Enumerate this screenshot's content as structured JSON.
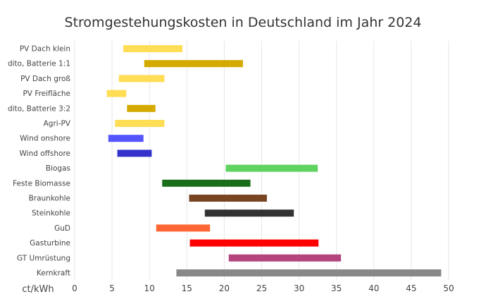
{
  "chart_data": {
    "type": "bar",
    "orientation": "horizontal-range",
    "title": "Stromgestehungskosten in Deutschland im Jahr 2024",
    "xlabel": "ct/kWh",
    "xlim": [
      0,
      50
    ],
    "xticks": [
      0,
      5,
      10,
      15,
      20,
      25,
      30,
      35,
      40,
      45,
      50
    ],
    "grid": true,
    "series": [
      {
        "name": "PV Dach klein",
        "low": 6.5,
        "high": 14.4,
        "color": "#ffdd55"
      },
      {
        "name": "dito, Batterie 1:1",
        "low": 9.3,
        "high": 22.5,
        "color": "#d4aa00"
      },
      {
        "name": "PV Dach groß",
        "low": 5.9,
        "high": 12.0,
        "color": "#ffdd55"
      },
      {
        "name": "PV Freifläche",
        "low": 4.3,
        "high": 6.9,
        "color": "#ffdd55"
      },
      {
        "name": "dito, Batterie 3:2",
        "low": 7.0,
        "high": 10.8,
        "color": "#d4aa00"
      },
      {
        "name": "Agri-PV",
        "low": 5.4,
        "high": 12.0,
        "color": "#ffdd55"
      },
      {
        "name": "Wind onshore",
        "low": 4.5,
        "high": 9.2,
        "color": "#5555ff"
      },
      {
        "name": "Wind offshore",
        "low": 5.7,
        "high": 10.3,
        "color": "#3333cc"
      },
      {
        "name": "Biogas",
        "low": 20.2,
        "high": 32.5,
        "color": "#5fd35f"
      },
      {
        "name": "Feste Biomasse",
        "low": 11.7,
        "high": 23.5,
        "color": "#1a6e1a"
      },
      {
        "name": "Braunkohle",
        "low": 15.3,
        "high": 25.7,
        "color": "#784421"
      },
      {
        "name": "Steinkohle",
        "low": 17.4,
        "high": 29.3,
        "color": "#333333"
      },
      {
        "name": "GuD",
        "low": 10.9,
        "high": 18.1,
        "color": "#ff6633"
      },
      {
        "name": "Gasturbine",
        "low": 15.4,
        "high": 32.6,
        "color": "#ff0000"
      },
      {
        "name": "GT Umrüstung",
        "low": 20.6,
        "high": 35.6,
        "color": "#b3447e"
      },
      {
        "name": "Kernkraft",
        "low": 13.6,
        "high": 49.0,
        "color": "#888888"
      }
    ]
  }
}
